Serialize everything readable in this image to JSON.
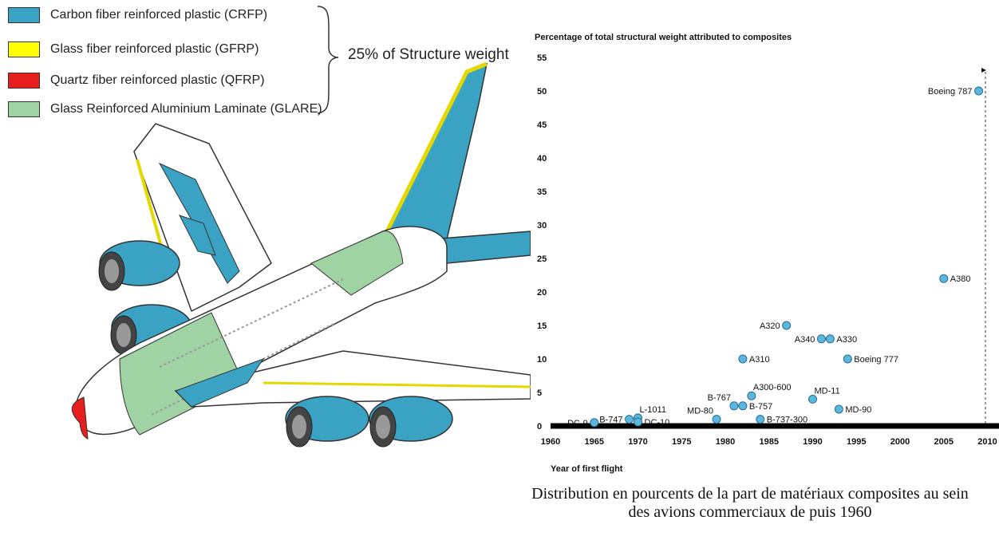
{
  "legend": {
    "items": [
      {
        "label": "Carbon fiber reinforced plastic (CRFP)",
        "color": "#3aa3c4"
      },
      {
        "label": "Glass fiber reinforced plastic (GFRP)",
        "color": "#ffff00"
      },
      {
        "label": "Quartz fiber reinforced plastic (QFRP)",
        "color": "#e61e1e"
      },
      {
        "label": "Glass Reinforced Aluminium Laminate (GLARE)",
        "color": "#9fd3a3"
      }
    ],
    "note": "25% of Structure weight"
  },
  "caption": "Distribution en pourcents de la part de matériaux composites au sein des avions commerciaux de puis 1960",
  "chart_data": {
    "type": "scatter",
    "title": "Percentage of total structural weight attributed to composites",
    "xlabel": "Year of first flight",
    "ylabel": "",
    "xlim": [
      1960,
      2012
    ],
    "ylim": [
      0,
      55
    ],
    "xticks": [
      1960,
      1965,
      1970,
      1975,
      1980,
      1985,
      1990,
      1995,
      2000,
      2005,
      2010
    ],
    "yticks": [
      0,
      5,
      10,
      15,
      20,
      25,
      30,
      35,
      40,
      45,
      50,
      55
    ],
    "point_color": "#5bb6e0",
    "points": [
      {
        "label": "DC-9",
        "x": 1965,
        "y": 0.5,
        "label_side": "left"
      },
      {
        "label": "B-747",
        "x": 1969,
        "y": 1,
        "label_side": "left"
      },
      {
        "label": "L-1011",
        "x": 1970,
        "y": 1.2,
        "label_side": "right-up"
      },
      {
        "label": "DC-10",
        "x": 1970,
        "y": 0.6,
        "label_side": "right"
      },
      {
        "label": "MD-80",
        "x": 1979,
        "y": 1,
        "label_side": "left-up"
      },
      {
        "label": "B-767",
        "x": 1981,
        "y": 3,
        "label_side": "left-up"
      },
      {
        "label": "B-757",
        "x": 1982,
        "y": 3,
        "label_side": "right"
      },
      {
        "label": "A300-600",
        "x": 1983,
        "y": 4.5,
        "label_side": "right-up"
      },
      {
        "label": "B-737-300",
        "x": 1984,
        "y": 1,
        "label_side": "right"
      },
      {
        "label": "A310",
        "x": 1982,
        "y": 10,
        "label_side": "right"
      },
      {
        "label": "A320",
        "x": 1987,
        "y": 15,
        "label_side": "left"
      },
      {
        "label": "A340",
        "x": 1991,
        "y": 13,
        "label_side": "left"
      },
      {
        "label": "A330",
        "x": 1992,
        "y": 13,
        "label_side": "right"
      },
      {
        "label": "MD-11",
        "x": 1990,
        "y": 4,
        "label_side": "right-up"
      },
      {
        "label": "MD-90",
        "x": 1993,
        "y": 2.5,
        "label_side": "right"
      },
      {
        "label": "Boeing 777",
        "x": 1994,
        "y": 10,
        "label_side": "right"
      },
      {
        "label": "A380",
        "x": 2005,
        "y": 22,
        "label_side": "right"
      },
      {
        "label": "Boeing 787",
        "x": 2009,
        "y": 50,
        "label_side": "left"
      }
    ]
  }
}
